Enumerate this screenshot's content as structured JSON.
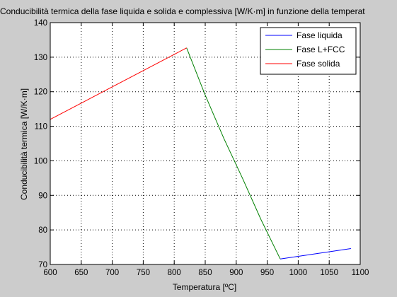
{
  "chart_data": {
    "type": "line",
    "title": "Conducibilità termica della fase liquida e solida e complessiva [W/K·m] in funzione della temperat",
    "xlabel": "Temperatura [ºC]",
    "ylabel": "Conducibilità termica [W/K·m]",
    "xlim": [
      600,
      1100
    ],
    "ylim": [
      70,
      140
    ],
    "xticks": [
      600,
      650,
      700,
      750,
      800,
      850,
      900,
      950,
      1000,
      1050,
      1100
    ],
    "yticks": [
      70,
      80,
      90,
      100,
      110,
      120,
      130,
      140
    ],
    "grid": true,
    "legend_position": "top-right",
    "series": [
      {
        "name": "Fase liquida",
        "color": "#0000ff",
        "x": [
          971,
          1085
        ],
        "y": [
          71.6,
          74.6
        ]
      },
      {
        "name": "Fase L+FCC",
        "color": "#008000",
        "x": [
          820,
          850,
          880,
          910,
          940,
          971
        ],
        "y": [
          132.7,
          119.0,
          106.5,
          95.0,
          83.0,
          71.6
        ]
      },
      {
        "name": "Fase solida",
        "color": "#ff0000",
        "x": [
          600,
          820
        ],
        "y": [
          112.0,
          132.7
        ]
      }
    ]
  }
}
